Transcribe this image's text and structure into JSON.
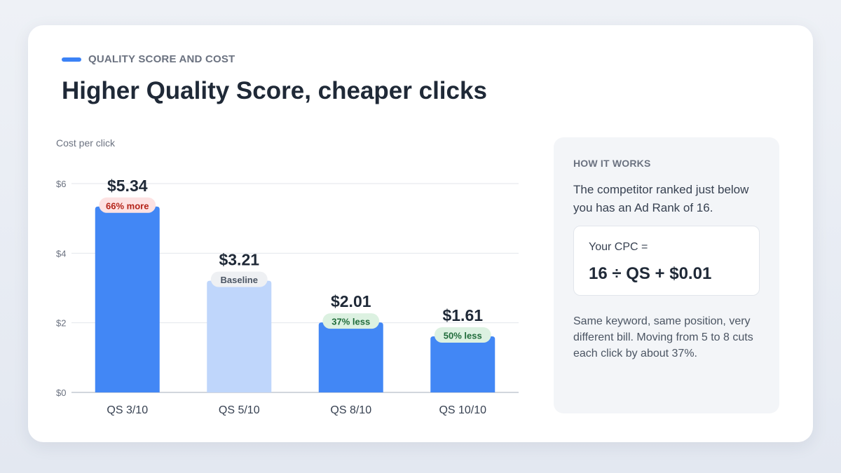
{
  "header": {
    "eyebrow": "QUALITY SCORE AND COST",
    "title": "Higher Quality Score, cheaper clicks"
  },
  "colors": {
    "accent": "#3b82f6",
    "bar_strong": "#4287f5",
    "bar_light": "#bfd6fb",
    "badge_red_bg": "#fde2e2",
    "badge_red_text": "#b42318",
    "badge_gray_bg": "#eef0f3",
    "badge_gray_text": "#4b5563",
    "badge_green_bg": "#dcf1e1",
    "badge_green_text": "#1f6b3a"
  },
  "chart_data": {
    "type": "bar",
    "ylabel": "Cost per click",
    "ylim": [
      0,
      6
    ],
    "yticks": [
      0,
      2,
      4,
      6
    ],
    "ytick_labels": [
      "$0",
      "$2",
      "$4",
      "$6"
    ],
    "grid": true,
    "categories": [
      "QS 3/10",
      "QS 5/10",
      "QS 8/10",
      "QS 10/10"
    ],
    "values": [
      5.34,
      3.21,
      2.01,
      1.61
    ],
    "value_labels": [
      "$5.34",
      "$3.21",
      "$2.01",
      "$1.61"
    ],
    "badges": [
      {
        "text": "66% more",
        "tone": "red"
      },
      {
        "text": "Baseline",
        "tone": "gray"
      },
      {
        "text": "37% less",
        "tone": "green"
      },
      {
        "text": "50% less",
        "tone": "green"
      }
    ],
    "bar_styles": [
      "strong",
      "light",
      "strong",
      "strong"
    ]
  },
  "side": {
    "eyebrow": "HOW IT WORKS",
    "intro": "The competitor ranked just below you has an Ad Rank of 16.",
    "formula_label": "Your CPC =",
    "formula": "16 ÷ QS + $0.01",
    "note": "Same keyword, same position, very different bill. Moving from 5 to 8 cuts each click by about 37%."
  }
}
